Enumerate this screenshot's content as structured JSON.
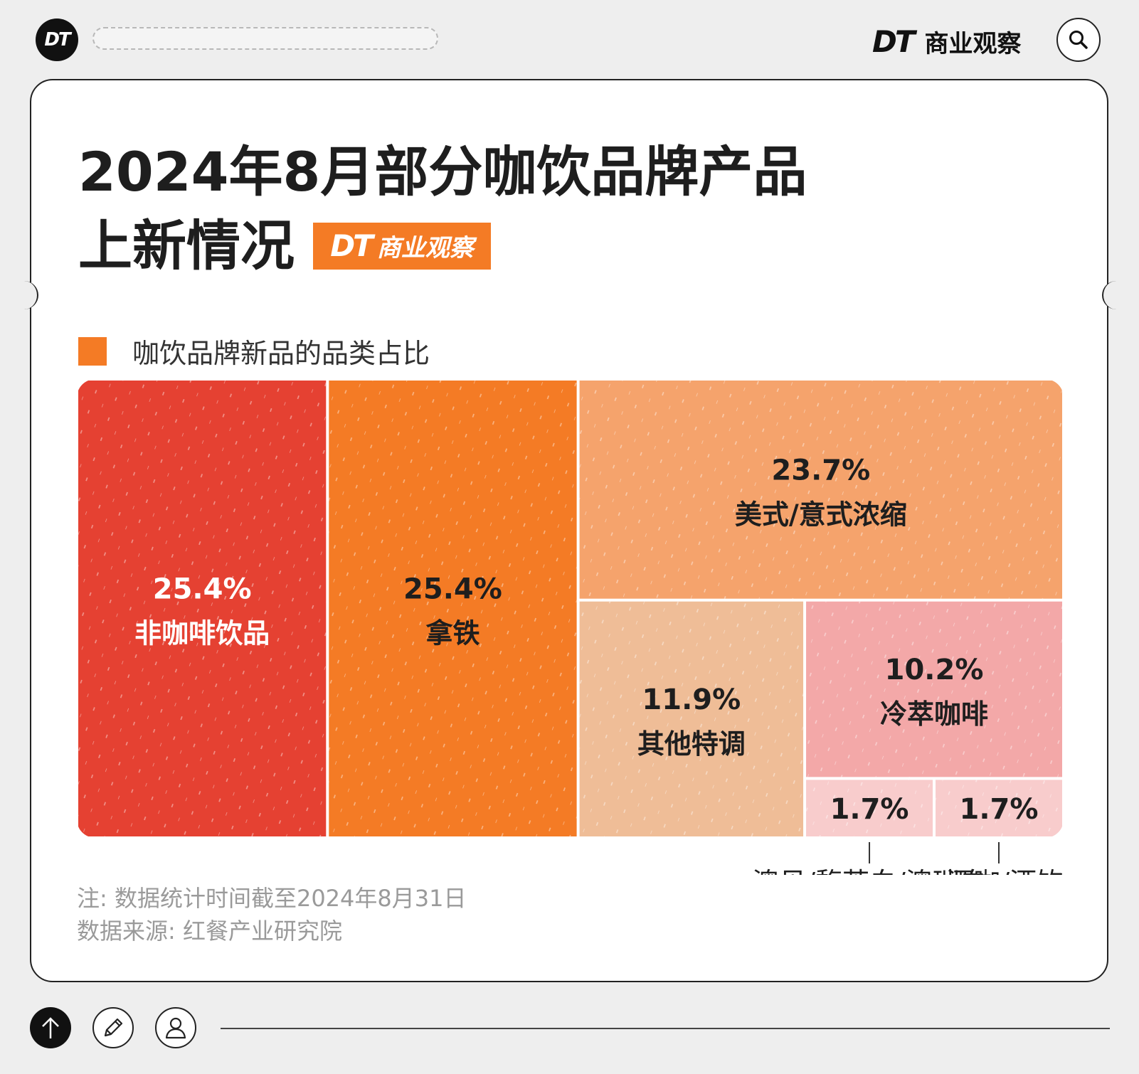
{
  "header": {
    "logo_text": "DT",
    "brand_dt": "DT",
    "brand_name": "商业观察"
  },
  "title": {
    "line1": "2024年8月部分咖饮品牌产品",
    "line2": "上新情况",
    "badge_dt": "DT",
    "badge_name": "商业观察"
  },
  "legend": {
    "label": "咖饮品牌新品的品类占比",
    "color": "#f47b25"
  },
  "chart_data": {
    "type": "treemap",
    "unit": "%",
    "items": [
      {
        "label": "非咖啡饮品",
        "value": 25.4,
        "value_text": "25.4%",
        "color": "#e54132",
        "text_color": "#ffffff"
      },
      {
        "label": "拿铁",
        "value": 25.4,
        "value_text": "25.4%",
        "color": "#f47b25",
        "text_color": "#1e1e1e"
      },
      {
        "label": "美式/意式浓缩",
        "value": 23.7,
        "value_text": "23.7%",
        "color": "#f5a36c",
        "text_color": "#1e1e1e"
      },
      {
        "label": "其他特调",
        "value": 11.9,
        "value_text": "11.9%",
        "color": "#efbd97",
        "text_color": "#1e1e1e"
      },
      {
        "label": "冷萃咖啡",
        "value": 10.2,
        "value_text": "10.2%",
        "color": "#f3a8a8",
        "text_color": "#1e1e1e"
      },
      {
        "label": "澳贝/馥芮白/澳瑞白",
        "value": 1.7,
        "value_text": "1.7%",
        "color": "#f8cccc",
        "text_color": "#1e1e1e"
      },
      {
        "label": "酒咖/酒饮",
        "value": 1.7,
        "value_text": "1.7%",
        "color": "#f8cccc",
        "text_color": "#1e1e1e"
      }
    ]
  },
  "footnote": {
    "note": "注: 数据统计时间截至2024年8月31日",
    "source": "数据来源: 红餐产业研究院"
  }
}
